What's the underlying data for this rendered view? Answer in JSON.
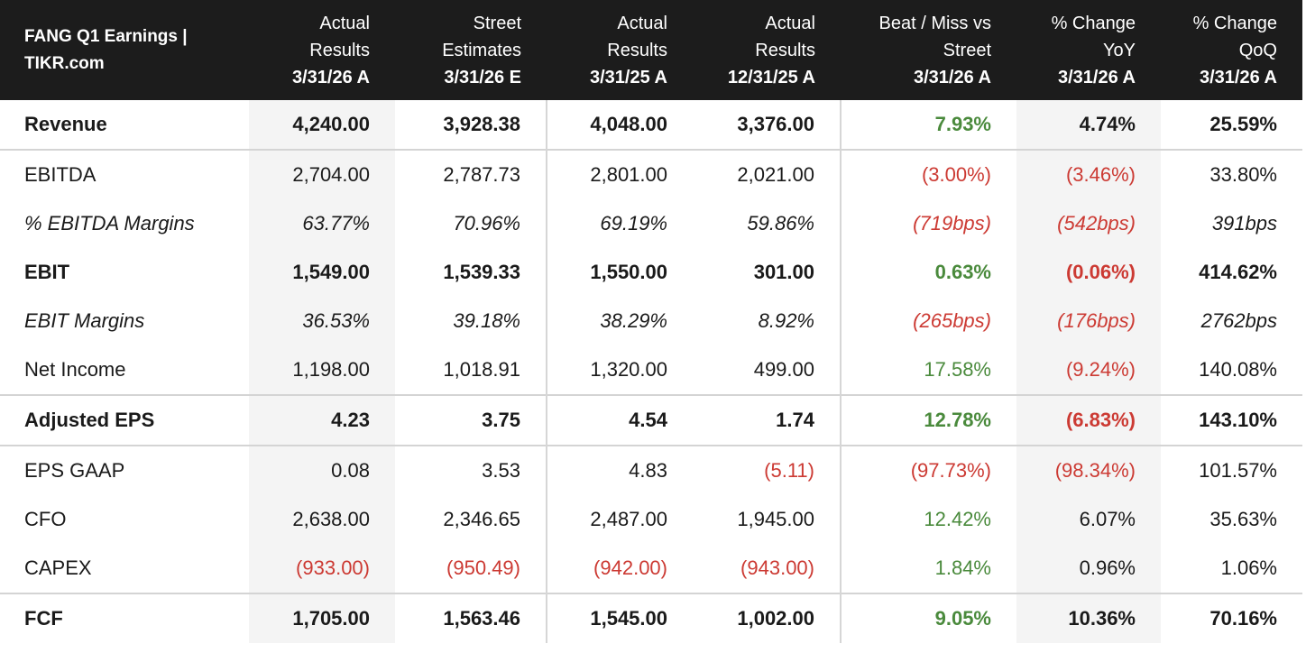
{
  "header": {
    "title_line1": "FANG Q1 Earnings |",
    "title_line2": "TIKR.com",
    "columns": [
      {
        "line1": "Actual",
        "line2": "Results",
        "date": "3/31/26 A"
      },
      {
        "line1": "Street",
        "line2": "Estimates",
        "date": "3/31/26 E"
      },
      {
        "line1": "Actual",
        "line2": "Results",
        "date": "3/31/25 A"
      },
      {
        "line1": "Actual",
        "line2": "Results",
        "date": "12/31/25 A"
      },
      {
        "line1": "Beat / Miss vs",
        "line2": "Street",
        "date": "3/31/26 A"
      },
      {
        "line1": "% Change",
        "line2": "YoY",
        "date": "3/31/26 A"
      },
      {
        "line1": "% Change",
        "line2": "QoQ",
        "date": "3/31/26 A"
      }
    ]
  },
  "colors": {
    "positive": "#4a8a3c",
    "negative": "#cc3a33",
    "header_bg": "#1c1c1c",
    "shade": "#f4f4f4"
  },
  "rows": [
    {
      "label": "Revenue",
      "cells": [
        "4,240.00",
        "3,928.38",
        "4,048.00",
        "3,376.00",
        "7.93%",
        "4.74%",
        "25.59%"
      ]
    },
    {
      "label": "EBITDA",
      "cells": [
        "2,704.00",
        "2,787.73",
        "2,801.00",
        "2,021.00",
        "(3.00%)",
        "(3.46%)",
        "33.80%"
      ]
    },
    {
      "label": "% EBITDA Margins",
      "cells": [
        "63.77%",
        "70.96%",
        "69.19%",
        "59.86%",
        "(719bps)",
        "(542bps)",
        "391bps"
      ]
    },
    {
      "label": "EBIT",
      "cells": [
        "1,549.00",
        "1,539.33",
        "1,550.00",
        "301.00",
        "0.63%",
        "(0.06%)",
        "414.62%"
      ]
    },
    {
      "label": "EBIT Margins",
      "cells": [
        "36.53%",
        "39.18%",
        "38.29%",
        "8.92%",
        "(265bps)",
        "(176bps)",
        "2762bps"
      ]
    },
    {
      "label": "Net Income",
      "cells": [
        "1,198.00",
        "1,018.91",
        "1,320.00",
        "499.00",
        "17.58%",
        "(9.24%)",
        "140.08%"
      ]
    },
    {
      "label": "Adjusted EPS",
      "cells": [
        "4.23",
        "3.75",
        "4.54",
        "1.74",
        "12.78%",
        "(6.83%)",
        "143.10%"
      ]
    },
    {
      "label": "EPS GAAP",
      "cells": [
        "0.08",
        "3.53",
        "4.83",
        "(5.11)",
        "(97.73%)",
        "(98.34%)",
        "101.57%"
      ]
    },
    {
      "label": "CFO",
      "cells": [
        "2,638.00",
        "2,346.65",
        "2,487.00",
        "1,945.00",
        "12.42%",
        "6.07%",
        "35.63%"
      ]
    },
    {
      "label": "CAPEX",
      "cells": [
        "(933.00)",
        "(950.49)",
        "(942.00)",
        "(943.00)",
        "1.84%",
        "0.96%",
        "1.06%"
      ]
    },
    {
      "label": "FCF",
      "cells": [
        "1,705.00",
        "1,563.46",
        "1,545.00",
        "1,002.00",
        "9.05%",
        "10.36%",
        "70.16%"
      ]
    }
  ]
}
